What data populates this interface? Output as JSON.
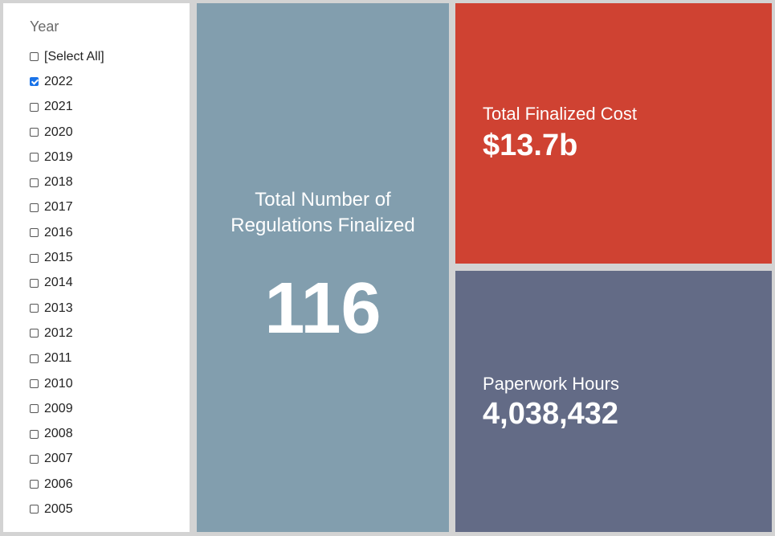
{
  "filter": {
    "title": "Year",
    "options": [
      {
        "label": "[Select All]",
        "checked": false
      },
      {
        "label": "2022",
        "checked": true
      },
      {
        "label": "2021",
        "checked": false
      },
      {
        "label": "2020",
        "checked": false
      },
      {
        "label": "2019",
        "checked": false
      },
      {
        "label": "2018",
        "checked": false
      },
      {
        "label": "2017",
        "checked": false
      },
      {
        "label": "2016",
        "checked": false
      },
      {
        "label": "2015",
        "checked": false
      },
      {
        "label": "2014",
        "checked": false
      },
      {
        "label": "2013",
        "checked": false
      },
      {
        "label": "2012",
        "checked": false
      },
      {
        "label": "2011",
        "checked": false
      },
      {
        "label": "2010",
        "checked": false
      },
      {
        "label": "2009",
        "checked": false
      },
      {
        "label": "2008",
        "checked": false
      },
      {
        "label": "2007",
        "checked": false
      },
      {
        "label": "2006",
        "checked": false
      },
      {
        "label": "2005",
        "checked": false
      }
    ]
  },
  "tiles": {
    "regulations": {
      "label": "Total Number of Regulations Finalized",
      "value": "116",
      "color": "#829eae"
    },
    "cost": {
      "label": "Total Finalized Cost",
      "value": "$13.7b",
      "color": "#cf4232"
    },
    "hours": {
      "label": "Paperwork Hours",
      "value": "4,038,432",
      "color": "#636b86"
    }
  },
  "colors": {
    "background": "#d3d3d3",
    "checkbox_checked": "#1a73e8"
  }
}
